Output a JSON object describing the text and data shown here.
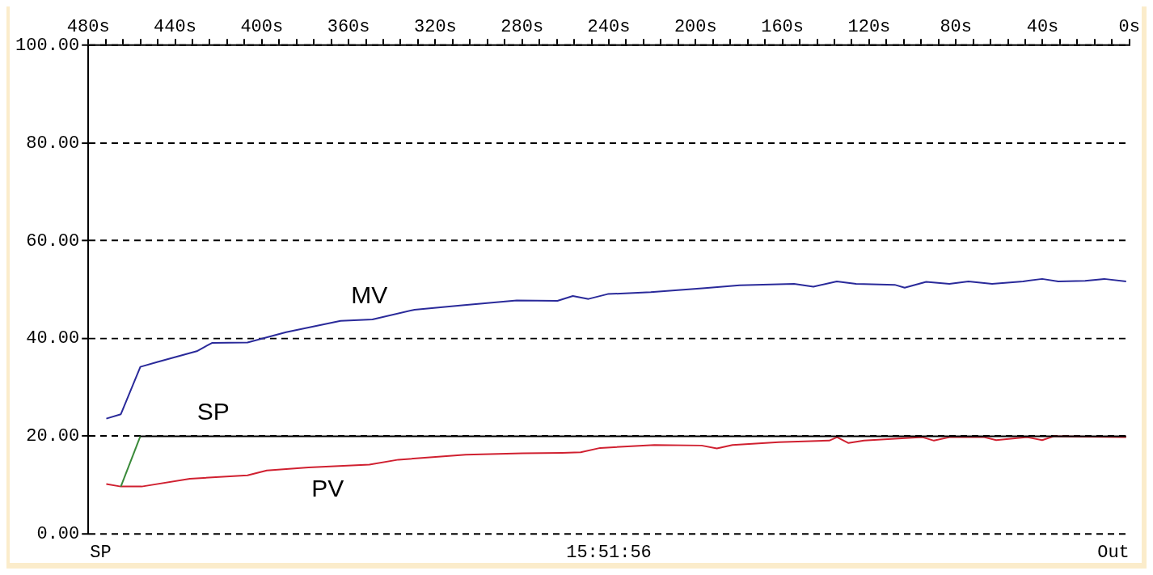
{
  "chart_data": {
    "type": "line",
    "xlim": [
      480,
      0
    ],
    "xticks": [
      {
        "value": 480,
        "label": "480s"
      },
      {
        "value": 472,
        "label": null
      },
      {
        "value": 464,
        "label": null
      },
      {
        "value": 456,
        "label": null
      },
      {
        "value": 448,
        "label": null
      },
      {
        "value": 440,
        "label": "440s"
      },
      {
        "value": 432,
        "label": null
      },
      {
        "value": 424,
        "label": null
      },
      {
        "value": 416,
        "label": null
      },
      {
        "value": 408,
        "label": null
      },
      {
        "value": 400,
        "label": "400s"
      },
      {
        "value": 392,
        "label": null
      },
      {
        "value": 384,
        "label": null
      },
      {
        "value": 376,
        "label": null
      },
      {
        "value": 368,
        "label": null
      },
      {
        "value": 360,
        "label": "360s"
      },
      {
        "value": 352,
        "label": null
      },
      {
        "value": 344,
        "label": null
      },
      {
        "value": 336,
        "label": null
      },
      {
        "value": 328,
        "label": null
      },
      {
        "value": 320,
        "label": "320s"
      },
      {
        "value": 312,
        "label": null
      },
      {
        "value": 304,
        "label": null
      },
      {
        "value": 296,
        "label": null
      },
      {
        "value": 288,
        "label": null
      },
      {
        "value": 280,
        "label": "280s"
      },
      {
        "value": 272,
        "label": null
      },
      {
        "value": 264,
        "label": null
      },
      {
        "value": 256,
        "label": null
      },
      {
        "value": 248,
        "label": null
      },
      {
        "value": 240,
        "label": "240s"
      },
      {
        "value": 232,
        "label": null
      },
      {
        "value": 224,
        "label": null
      },
      {
        "value": 216,
        "label": null
      },
      {
        "value": 208,
        "label": null
      },
      {
        "value": 200,
        "label": "200s"
      },
      {
        "value": 192,
        "label": null
      },
      {
        "value": 184,
        "label": null
      },
      {
        "value": 176,
        "label": null
      },
      {
        "value": 168,
        "label": null
      },
      {
        "value": 160,
        "label": "160s"
      },
      {
        "value": 152,
        "label": null
      },
      {
        "value": 144,
        "label": null
      },
      {
        "value": 136,
        "label": null
      },
      {
        "value": 128,
        "label": null
      },
      {
        "value": 120,
        "label": "120s"
      },
      {
        "value": 112,
        "label": null
      },
      {
        "value": 104,
        "label": null
      },
      {
        "value": 96,
        "label": null
      },
      {
        "value": 88,
        "label": null
      },
      {
        "value": 80,
        "label": "80s"
      },
      {
        "value": 72,
        "label": null
      },
      {
        "value": 64,
        "label": null
      },
      {
        "value": 56,
        "label": null
      },
      {
        "value": 48,
        "label": null
      },
      {
        "value": 40,
        "label": "40s"
      },
      {
        "value": 32,
        "label": null
      },
      {
        "value": 24,
        "label": null
      },
      {
        "value": 16,
        "label": null
      },
      {
        "value": 8,
        "label": null
      },
      {
        "value": 0,
        "label": "0s"
      }
    ],
    "ylim": [
      0,
      100
    ],
    "yticks": [
      {
        "value": 0,
        "label": "0.00"
      },
      {
        "value": 20,
        "label": "20.00"
      },
      {
        "value": 40,
        "label": "40.00"
      },
      {
        "value": 60,
        "label": "60.00"
      },
      {
        "value": 80,
        "label": "80.00"
      },
      {
        "value": 100,
        "label": "100.00"
      }
    ],
    "grid": "y",
    "line_style": "solid",
    "marker": "none",
    "legend": false,
    "annotations": [
      "SP",
      "15:51:56",
      "Out"
    ],
    "series": [
      {
        "name": "MV",
        "color": "#2a2a9a",
        "x": [
          471.7,
          465,
          456,
          448,
          430,
          423,
          406.6,
          388.8,
          363.7,
          349,
          329.6,
          307.6,
          282.5,
          263.7,
          256.6,
          249.4,
          240.5,
          220.7,
          195.7,
          179.7,
          154.6,
          145.7,
          134.9,
          126,
          108.2,
          103.6,
          93.7,
          83,
          74.2,
          63.3,
          49,
          40.2,
          32.8,
          20.4,
          11.6,
          1.5
        ],
        "values": [
          23.6,
          24.5,
          34.2,
          35.2,
          37.4,
          39.1,
          39.2,
          41.3,
          43.6,
          43.9,
          45.9,
          46.8,
          47.8,
          47.7,
          48.7,
          48.1,
          49.1,
          49.5,
          50.3,
          50.9,
          51.2,
          50.6,
          51.7,
          51.2,
          51.0,
          50.4,
          51.6,
          51.2,
          51.7,
          51.2,
          51.7,
          52.2,
          51.7,
          51.8,
          52.2,
          51.7
        ]
      },
      {
        "name": "SP",
        "color": "#000000",
        "x": [
          456,
          1.5
        ],
        "values": [
          20,
          20
        ]
      },
      {
        "color": "#3a8a3a",
        "x": [
          465,
          456
        ],
        "values": [
          9.7,
          20
        ]
      },
      {
        "name": "PV",
        "color": "#d02030",
        "x": [
          471.7,
          465,
          455.4,
          433.2,
          406.6,
          397.7,
          378.5,
          350.4,
          337,
          306,
          279.8,
          261.6,
          253,
          244,
          219,
          197.3,
          190.2,
          183,
          161.7,
          138.4,
          134.8,
          129.5,
          122.4,
          95.4,
          90.1,
          83,
          66.9,
          61.4,
          47.1,
          40.2,
          34.7,
          1.5
        ],
        "values": [
          10.2,
          9.7,
          9.7,
          11.3,
          12.0,
          13.0,
          13.6,
          14.2,
          15.2,
          16.2,
          16.5,
          16.6,
          16.7,
          17.6,
          18.2,
          18.1,
          17.5,
          18.2,
          18.8,
          19.1,
          19.8,
          18.6,
          19.1,
          19.8,
          19.1,
          19.8,
          19.8,
          19.2,
          19.8,
          19.2,
          20.0,
          19.8
        ]
      }
    ]
  }
}
